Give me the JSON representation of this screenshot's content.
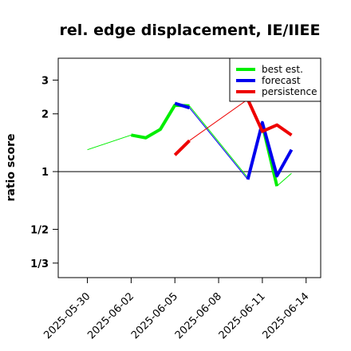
{
  "chart_data": {
    "type": "line",
    "title": "rel. edge displacement, IE/IIEE",
    "xlabel": "",
    "ylabel": "ratio score",
    "y_scale": "log2",
    "ylim": [
      0.28,
      3.9
    ],
    "xlim": [
      "2025-05-28",
      "2025-06-15"
    ],
    "x_ticks": [
      "2025-05-30",
      "2025-06-02",
      "2025-06-05",
      "2025-06-08",
      "2025-06-11",
      "2025-06-14"
    ],
    "x_tick_colors": [
      "#000000",
      "#000000",
      "#228b22",
      "#000000",
      "#000000",
      "#000000"
    ],
    "y_ticks": [
      {
        "value": 3,
        "label": "3"
      },
      {
        "value": 2,
        "label": "2"
      },
      {
        "value": 1,
        "label": "1"
      },
      {
        "value": 0.5,
        "label": "1/2"
      },
      {
        "value": 0.3333,
        "label": "1/3"
      }
    ],
    "reference_line": 1,
    "legend": {
      "position": "top-right",
      "entries": [
        "best est.",
        "forecast",
        "persistence"
      ]
    },
    "series": [
      {
        "name": "best est.",
        "color": "#00ee00",
        "thin_segments": [
          [
            [
              "2025-05-30",
              1.3
            ],
            [
              "2025-06-02",
              1.55
            ]
          ],
          [
            [
              "2025-06-06",
              2.2
            ],
            [
              "2025-06-10",
              0.93
            ]
          ],
          [
            [
              "2025-06-12",
              0.84
            ],
            [
              "2025-06-13",
              0.98
            ]
          ]
        ],
        "thick_segments": [
          [
            [
              "2025-06-02",
              1.55
            ],
            [
              "2025-06-03",
              1.5
            ],
            [
              "2025-06-04",
              1.66
            ],
            [
              "2025-06-05",
              2.22
            ],
            [
              "2025-06-06",
              2.2
            ]
          ],
          [
            [
              "2025-06-11",
              1.76
            ],
            [
              "2025-06-12",
              0.84
            ]
          ]
        ]
      },
      {
        "name": "forecast",
        "color": "#0000ee",
        "thin_segments": [
          [
            [
              "2025-06-06",
              2.15
            ],
            [
              "2025-06-10",
              0.91
            ]
          ]
        ],
        "thick_segments": [
          [
            [
              "2025-06-05",
              2.27
            ],
            [
              "2025-06-06",
              2.15
            ]
          ],
          [
            [
              "2025-06-10",
              0.91
            ],
            [
              "2025-06-11",
              1.8
            ],
            [
              "2025-06-12",
              0.95
            ],
            [
              "2025-06-13",
              1.3
            ]
          ]
        ]
      },
      {
        "name": "persistence",
        "color": "#ee0000",
        "thin_segments": [
          [
            [
              "2025-06-06",
              1.45
            ],
            [
              "2025-06-10",
              2.38
            ]
          ]
        ],
        "thick_segments": [
          [
            [
              "2025-06-05",
              1.22
            ],
            [
              "2025-06-06",
              1.45
            ]
          ],
          [
            [
              "2025-06-10",
              2.38
            ],
            [
              "2025-06-11",
              1.62
            ],
            [
              "2025-06-12",
              1.75
            ],
            [
              "2025-06-13",
              1.55
            ]
          ]
        ]
      }
    ]
  }
}
